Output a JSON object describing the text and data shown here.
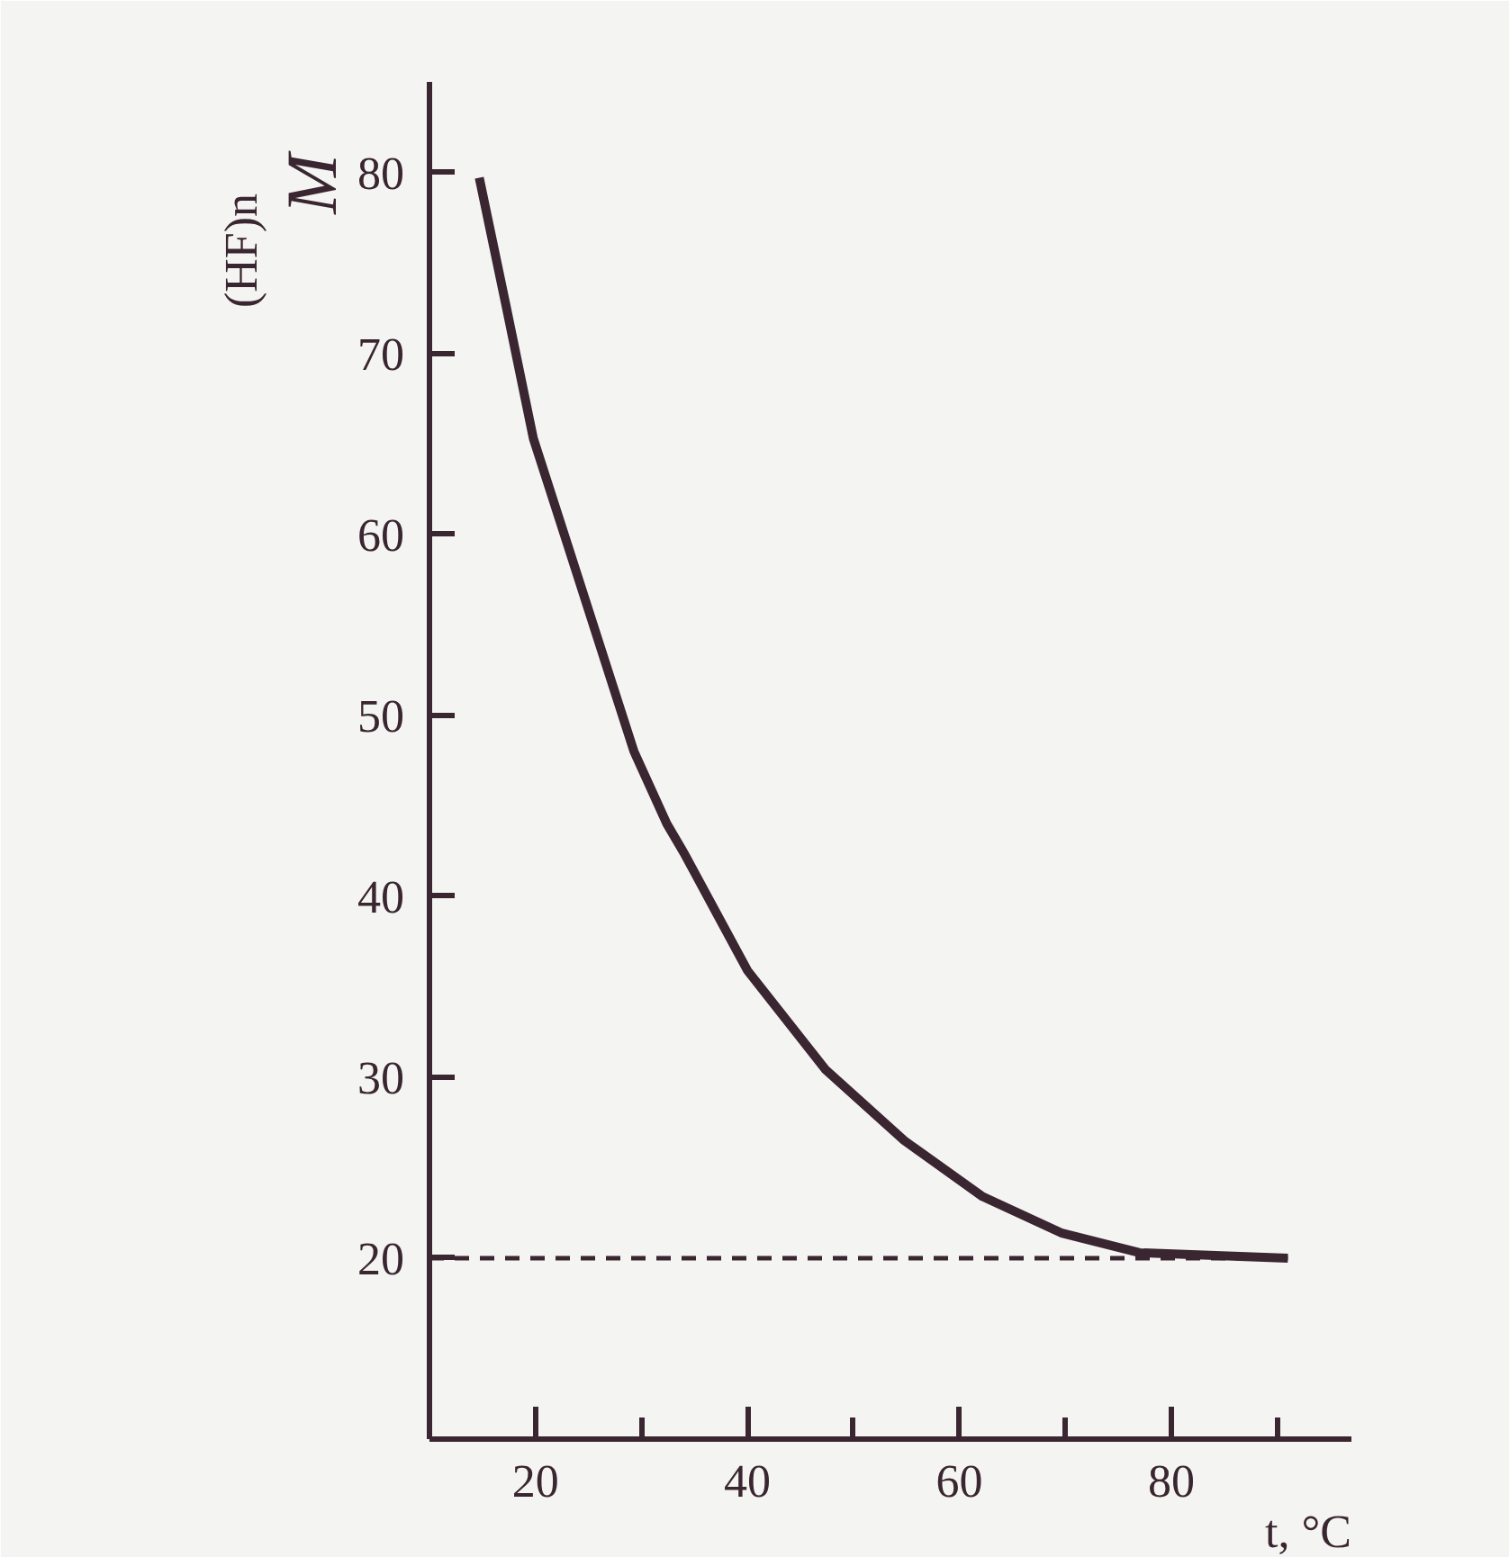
{
  "chart_data": {
    "type": "line",
    "xlabel": "t, °C",
    "ylabel": "M$_{(HF)n}$",
    "x": [
      14.7,
      17.2,
      19.8,
      23.1,
      27.1,
      29.3,
      32.4,
      34.1,
      40,
      47.4,
      54.8,
      62.2,
      69.6,
      77,
      91
    ],
    "series": [
      {
        "color": "#3a2630",
        "values": [
          79.7,
          72.7,
          65.3,
          59.3,
          52,
          48,
          44,
          42.3,
          35.9,
          30.4,
          26.5,
          23.4,
          21.4,
          20.3,
          20
        ]
      }
    ],
    "xlim": [
      10,
      97
    ],
    "ylim": [
      10,
      85
    ],
    "xticks": [
      {
        "value": 10,
        "label": null
      },
      20,
      {
        "value": 30,
        "label": null
      },
      40,
      {
        "value": 50,
        "label": null
      },
      60,
      {
        "value": 70,
        "label": null
      },
      80,
      {
        "value": 90,
        "label": null
      }
    ],
    "yticks": [
      20,
      30,
      40,
      50,
      60,
      70,
      80
    ],
    "ref_lines": [
      {
        "axis": "y",
        "value": 20,
        "color": "#3a2630",
        "line_style": "dashed"
      }
    ],
    "grid": false,
    "marker": "none",
    "line_style": "solid"
  }
}
